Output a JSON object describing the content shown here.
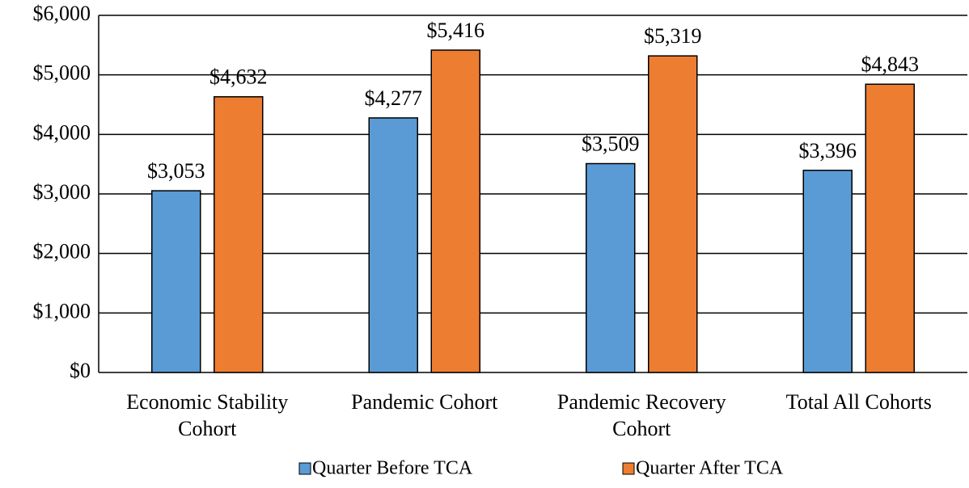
{
  "chart_data": {
    "type": "bar",
    "categories": [
      "Economic Stability Cohort",
      "Pandemic Cohort",
      "Pandemic Recovery Cohort",
      "Total All Cohorts"
    ],
    "series": [
      {
        "name": "Quarter Before TCA",
        "color": "#5b9bd5",
        "values": [
          3053,
          4277,
          3509,
          3396
        ],
        "value_labels": [
          "$3,053",
          "$4,277",
          "$3,509",
          "$3,396"
        ]
      },
      {
        "name": "Quarter After TCA",
        "color": "#ed7d31",
        "values": [
          4632,
          5416,
          5319,
          4843
        ],
        "value_labels": [
          "$4,632",
          "$5,416",
          "$5,319",
          "$4,843"
        ]
      }
    ],
    "ylim": [
      0,
      6000
    ],
    "yticks": [
      {
        "value": 0,
        "label": "$0"
      },
      {
        "value": 1000,
        "label": "$1,000"
      },
      {
        "value": 2000,
        "label": "$2,000"
      },
      {
        "value": 3000,
        "label": "$3,000"
      },
      {
        "value": 4000,
        "label": "$4,000"
      },
      {
        "value": 5000,
        "label": "$5,000"
      },
      {
        "value": 6000,
        "label": "$6,000"
      }
    ],
    "grid": true,
    "legend": "bottom"
  }
}
